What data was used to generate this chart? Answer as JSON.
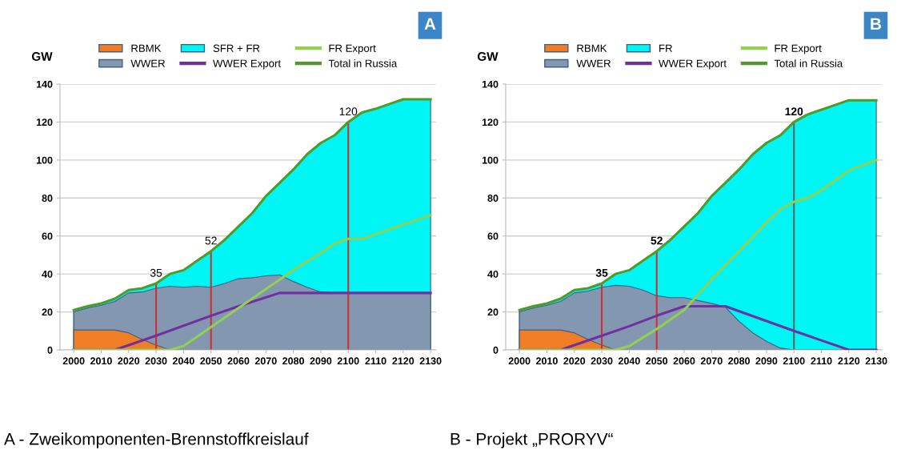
{
  "chart_data": [
    {
      "type": "area",
      "ylabel": "GW",
      "x": [
        2000,
        2005,
        2010,
        2015,
        2020,
        2025,
        2030,
        2035,
        2040,
        2045,
        2050,
        2055,
        2060,
        2065,
        2070,
        2075,
        2080,
        2085,
        2090,
        2095,
        2100,
        2105,
        2110,
        2115,
        2120,
        2125,
        2130
      ],
      "xlim": [
        1995,
        2132
      ],
      "ylim": [
        0,
        140
      ],
      "xticks": [
        2000,
        2010,
        2020,
        2030,
        2040,
        2050,
        2060,
        2070,
        2080,
        2090,
        2100,
        2110,
        2120,
        2130
      ],
      "yticks": [
        0,
        20,
        40,
        60,
        80,
        100,
        120,
        140
      ],
      "grid": "y",
      "legend": "top",
      "series": [
        {
          "name": "RBMK",
          "color": "#f07e26",
          "values": [
            10.5,
            10.5,
            10.5,
            10.5,
            9,
            5.5,
            2.5,
            0,
            null,
            null,
            null,
            null,
            null,
            null,
            null,
            null,
            null,
            null,
            null,
            null,
            null,
            null,
            null,
            null,
            null,
            null,
            null
          ]
        },
        {
          "name": "WWER",
          "color": "#8497b0",
          "values": [
            20,
            22,
            23.5,
            25.5,
            30,
            30.5,
            32.5,
            33.5,
            33,
            33.5,
            33,
            35,
            37.5,
            38,
            39,
            39.5,
            36,
            33,
            30.5,
            30,
            30,
            30,
            30,
            30,
            30,
            30,
            30
          ]
        },
        {
          "name": "SFR + FR",
          "color": "#00f5f5",
          "values": [
            21,
            23,
            24.5,
            27,
            31.5,
            32.5,
            35,
            40,
            42,
            47,
            52,
            58,
            65,
            72,
            81,
            88,
            95,
            103,
            109,
            113,
            120,
            125,
            127,
            129.5,
            132,
            132,
            132
          ]
        },
        {
          "name": "WWER Export",
          "type": "line",
          "color": "#7030a0",
          "x": [
            2000,
            2015,
            2030,
            2050,
            2060,
            2075,
            2130
          ],
          "values": [
            0,
            0,
            7.5,
            18,
            23,
            30,
            30
          ]
        },
        {
          "name": "FR Export",
          "type": "line",
          "color": "#92d050",
          "x": [
            2000,
            2035,
            2040,
            2050,
            2060,
            2070,
            2080,
            2090,
            2095,
            2100,
            2105,
            2110,
            2120,
            2130
          ],
          "values": [
            0,
            0,
            2,
            12,
            22,
            32,
            42,
            51,
            56,
            58.5,
            58.5,
            61,
            66,
            71
          ]
        },
        {
          "name": "Total in Russia",
          "type": "line",
          "color": "#4e9a2a",
          "values": [
            21,
            23,
            24.5,
            27,
            31.5,
            32.5,
            35,
            40,
            42,
            47,
            52,
            58,
            65,
            72,
            81,
            88,
            95,
            103,
            109,
            113,
            120,
            125,
            127,
            129.5,
            132,
            132,
            132
          ]
        }
      ],
      "ref_lines": [
        {
          "axis": "x",
          "value": 2030,
          "color": "#d03030"
        },
        {
          "axis": "x",
          "value": 2050,
          "color": "#d03030"
        },
        {
          "axis": "x",
          "value": 2100,
          "color": "#d03030"
        }
      ],
      "annotations": [
        "A",
        "A - Zweikomponenten-Brennstoffkreislauf",
        {
          "text": "35",
          "x": 2030,
          "y": 35
        },
        {
          "text": "52",
          "x": 2050,
          "y": 52
        },
        {
          "text": "120",
          "x": 2100,
          "y": 120
        }
      ]
    },
    {
      "type": "area",
      "ylabel": "GW",
      "x": [
        2000,
        2005,
        2010,
        2015,
        2020,
        2025,
        2030,
        2035,
        2040,
        2045,
        2050,
        2055,
        2060,
        2065,
        2070,
        2075,
        2080,
        2085,
        2090,
        2095,
        2100,
        2105,
        2110,
        2115,
        2120,
        2125,
        2130
      ],
      "xlim": [
        1995,
        2132
      ],
      "ylim": [
        0,
        140
      ],
      "xticks": [
        2000,
        2010,
        2020,
        2030,
        2040,
        2050,
        2060,
        2070,
        2080,
        2090,
        2100,
        2110,
        2120,
        2130
      ],
      "yticks": [
        0,
        20,
        40,
        60,
        80,
        100,
        120,
        140
      ],
      "grid": "y",
      "legend": "top",
      "series": [
        {
          "name": "RBMK",
          "color": "#f07e26",
          "values": [
            10.5,
            10.5,
            10.5,
            10.5,
            9,
            5.5,
            2.5,
            0,
            null,
            null,
            null,
            null,
            null,
            null,
            null,
            null,
            null,
            null,
            null,
            null,
            null,
            null,
            null,
            null,
            null,
            null,
            null
          ]
        },
        {
          "name": "WWER",
          "color": "#8497b0",
          "values": [
            20,
            22,
            23.5,
            25.5,
            30,
            31,
            33,
            34,
            33.5,
            31.5,
            28.5,
            27.5,
            27.5,
            26,
            24.5,
            22.5,
            15,
            9,
            4.5,
            1,
            0,
            0,
            0,
            0,
            0,
            0,
            0
          ]
        },
        {
          "name": "FR",
          "color": "#00f5f5",
          "values": [
            21,
            23,
            24.5,
            27,
            31.5,
            32.5,
            35,
            40,
            42,
            47,
            52,
            58,
            65,
            72,
            81,
            88,
            95,
            103,
            109,
            113,
            120,
            124,
            126.5,
            129,
            131.5,
            131.5,
            131.5
          ]
        },
        {
          "name": "WWER Export",
          "type": "line",
          "color": "#7030a0",
          "x": [
            2000,
            2015,
            2030,
            2040,
            2050,
            2060,
            2075,
            2100,
            2120,
            2130
          ],
          "values": [
            0,
            0,
            7.5,
            12.5,
            18,
            23,
            23,
            10,
            0,
            0
          ]
        },
        {
          "name": "FR Export",
          "type": "line",
          "color": "#92d050",
          "x": [
            2000,
            2035,
            2040,
            2050,
            2060,
            2070,
            2080,
            2090,
            2095,
            2100,
            2105,
            2110,
            2120,
            2130
          ],
          "values": [
            0,
            0,
            2,
            11,
            21,
            37,
            52,
            67,
            74,
            78,
            80,
            84,
            94.5,
            100
          ]
        },
        {
          "name": "Total in Russia",
          "type": "line",
          "color": "#4e9a2a",
          "values": [
            21,
            23,
            24.5,
            27,
            31.5,
            32.5,
            35,
            40,
            42,
            47,
            52,
            58,
            65,
            72,
            81,
            88,
            95,
            103,
            109,
            113,
            120,
            124,
            126.5,
            129,
            131.5,
            131.5,
            131.5
          ]
        }
      ],
      "ref_lines": [
        {
          "axis": "x",
          "value": 2030,
          "color": "#d03030"
        },
        {
          "axis": "x",
          "value": 2050,
          "color": "#d03030"
        },
        {
          "axis": "x",
          "value": 2100,
          "color": "#606060"
        }
      ],
      "annotations": [
        "B",
        "B - Projekt „PRORYV“",
        {
          "text": "35",
          "x": 2030,
          "y": 35
        },
        {
          "text": "52",
          "x": 2050,
          "y": 52
        },
        {
          "text": "120",
          "x": 2100,
          "y": 120
        }
      ]
    }
  ]
}
